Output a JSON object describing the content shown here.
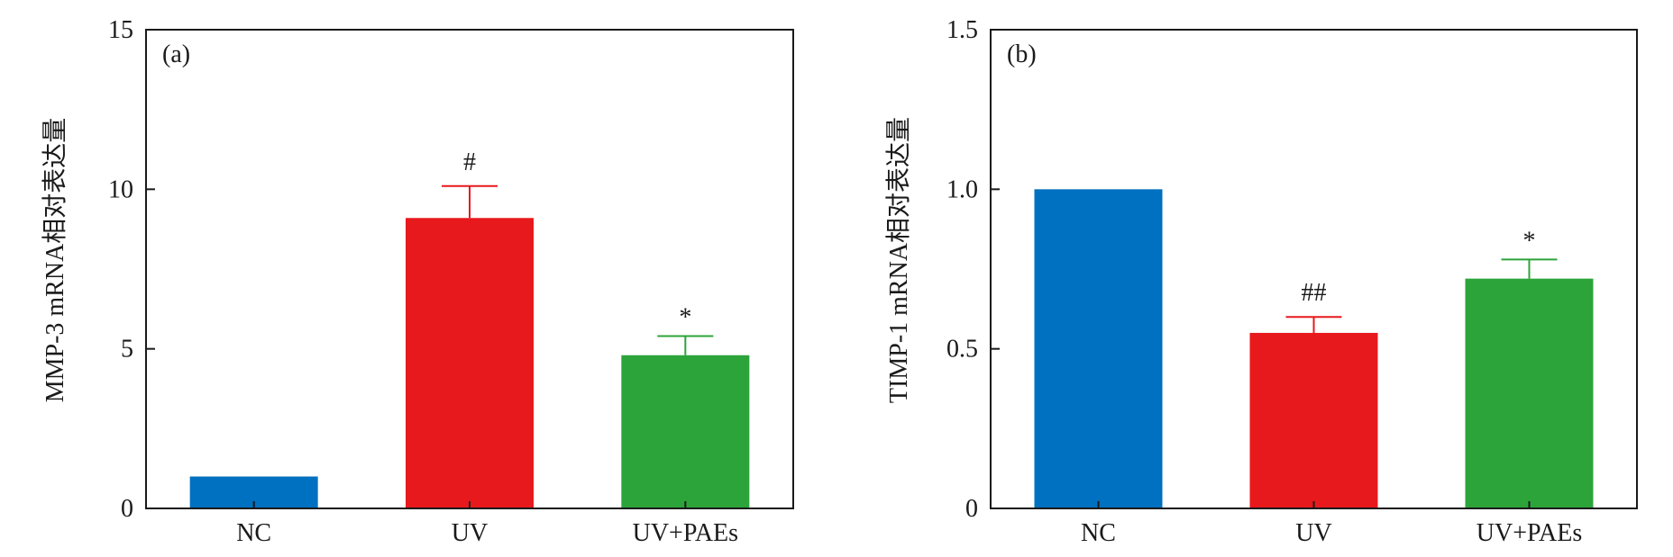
{
  "colors": {
    "NC": "#0070c0",
    "UV": "#e8191d",
    "UV+PAEs": "#2ca43a",
    "axis": "#1a1a1a"
  },
  "chart_data": [
    {
      "type": "bar",
      "panel_label": "(a)",
      "ylabel": "MMP-3 mRNA相对表达量",
      "xlabel": "",
      "categories": [
        "NC",
        "UV",
        "UV+PAEs"
      ],
      "values": [
        1.0,
        9.1,
        4.8
      ],
      "errors": [
        0,
        1.0,
        0.6
      ],
      "annotations": [
        "",
        "#",
        "*"
      ],
      "ylim": [
        0,
        15
      ],
      "yticks": [
        0,
        5,
        10,
        15
      ],
      "ytick_labels": [
        "0",
        "5",
        "10",
        "15"
      ]
    },
    {
      "type": "bar",
      "panel_label": "(b)",
      "ylabel": "TIMP-1 mRNA相对表达量",
      "xlabel": "",
      "categories": [
        "NC",
        "UV",
        "UV+PAEs"
      ],
      "values": [
        1.0,
        0.55,
        0.72
      ],
      "errors": [
        0,
        0.05,
        0.06
      ],
      "annotations": [
        "",
        "##",
        "*"
      ],
      "ylim": [
        0,
        1.5
      ],
      "yticks": [
        0,
        0.5,
        1.0,
        1.5
      ],
      "ytick_labels": [
        "0",
        "0.5",
        "1.0",
        "1.5"
      ]
    }
  ]
}
